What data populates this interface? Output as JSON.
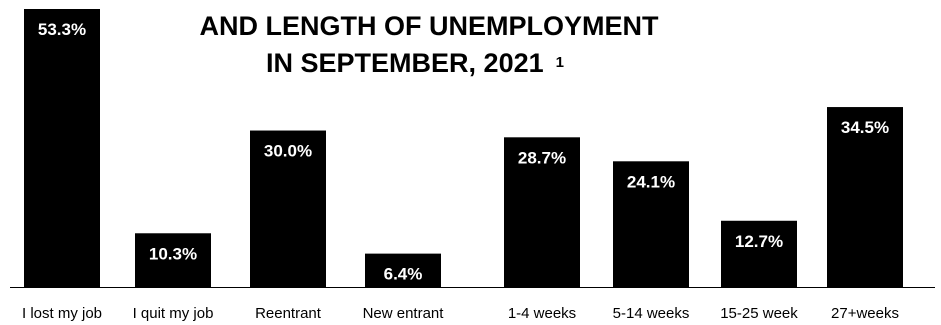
{
  "chart_data": {
    "type": "bar",
    "title": [
      "AND LENGTH OF UNEMPLOYMENT",
      "IN SEPTEMBER, 2021"
    ],
    "title_footnote": "1",
    "categories": [
      "I lost my job",
      "I quit my job",
      "Reentrant",
      "New entrant",
      "1-4 weeks",
      "5-14 weeks",
      "15-25 week",
      "27+weeks"
    ],
    "values": [
      53.3,
      10.3,
      30.0,
      6.4,
      28.7,
      24.1,
      12.7,
      34.5
    ],
    "value_labels": [
      "53.3%",
      "10.3%",
      "30.0%",
      "6.4%",
      "28.7%",
      "24.1%",
      "12.7%",
      "34.5%"
    ],
    "ylim": [
      0,
      53.3
    ],
    "grid": false,
    "legend": "none",
    "colors": {
      "bar": "#000000",
      "label": "#ffffff",
      "text": "#000000"
    }
  }
}
